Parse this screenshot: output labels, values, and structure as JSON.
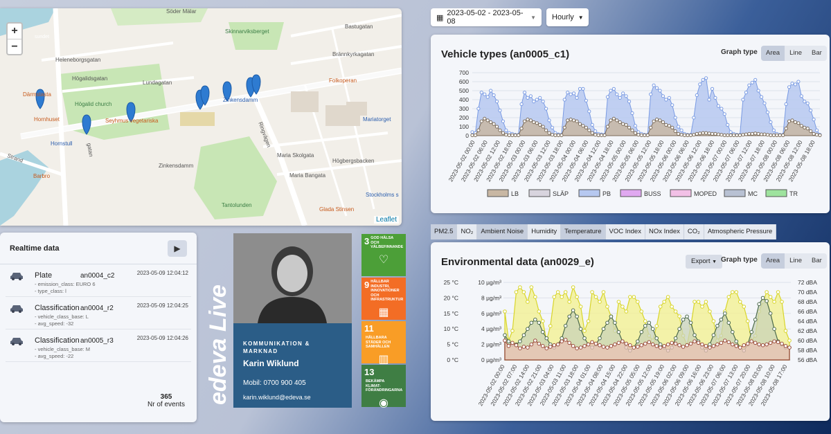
{
  "map": {
    "zoom_in": "+",
    "zoom_out": "−",
    "attribution": "Leaflet",
    "labels": {
      "soder_malar": "Söder Mälar",
      "skinnarviksberget": "Skinnarviksberget",
      "bastugatan": "Bastugatan",
      "brannkyrkagatan": "Brännkyrkagatan",
      "heleneborgsgatan": "Heleneborgsgatan",
      "hogalidsgatan": "Högalidsgatan",
      "lundagatan": "Lundagatan",
      "folkoperan": "Folkoperan",
      "darmstadt": "Därmstasta",
      "hogalid_church": "Högalid church",
      "zinkensdamm": "Zinkensdamm",
      "hornhuset": "Hornhuset",
      "seyhmus": "Seyhmus vegetariska",
      "mariatorget": "Mariatorget",
      "hornstull": "Hornstull",
      "ringvagen": "Ringvägen",
      "maria_skolgata": "Maria Skolgata",
      "strand": "Strand",
      "gatan": "gatan",
      "zinkensdamm2": "Zinkensdamm",
      "hogbergsbacken": "Högbergsbacken",
      "maria_bangata": "Maria Bangata",
      "barbro": "Barbro",
      "stockholms": "Stockholms s",
      "tantolunden": "Tantolunden",
      "glada": "Glada Stinsen",
      "sundet": "sundet"
    }
  },
  "realtime": {
    "title": "Realtime data",
    "events": [
      {
        "type": "Plate",
        "device": "an0004_c2",
        "time": "2023-05-09 12:04:12",
        "attrs": [
          "- emission_class: EURO 6",
          "- type_class: l"
        ]
      },
      {
        "type": "Classification",
        "device": "an0004_r2",
        "time": "2023-05-09 12:04:25",
        "attrs": [
          "- vehicle_class_base: L",
          "- avg_speed: -32"
        ]
      },
      {
        "type": "Classification",
        "device": "an0005_r3",
        "time": "2023-05-09 12:04:26",
        "attrs": [
          "- vehicle_class_base: M",
          "- avg_speed: -22"
        ]
      }
    ],
    "count": "365",
    "count_label": "Nr of events"
  },
  "brand": {
    "logo_text": "edeva Live"
  },
  "profile": {
    "department": "KOMMUNIKATION & MARKNAD",
    "name": "Karin Wiklund",
    "mobile": "Mobil: 0700 900 405",
    "email": "karin.wiklund@edeva.se"
  },
  "sdgs": [
    {
      "num": "3",
      "text": "GOD HÄLSA OCH VÄLBEFINNANDE",
      "color": "#4c9f38"
    },
    {
      "num": "9",
      "text": "HÅLLBAR INDUSTRI, INNOVATIONER OCH INFRASTRUKTUR",
      "color": "#f36d25"
    },
    {
      "num": "11",
      "text": "HÅLLBARA STÄDER OCH SAMHÄLLEN",
      "color": "#f99d26"
    },
    {
      "num": "13",
      "text": "BEKÄMPA KLIMAT-FÖRÄNDRINGARNA",
      "color": "#3f7e44"
    }
  ],
  "controls": {
    "date_range": "2023-05-02 - 2023-05-08",
    "interval": "Hourly"
  },
  "env_tabs": [
    {
      "label": "PM2.5",
      "active": true
    },
    {
      "label": "NO₂",
      "active": false
    },
    {
      "label": "Ambient Noise",
      "active": true
    },
    {
      "label": "Humidity",
      "active": false
    },
    {
      "label": "Temperature",
      "active": true
    },
    {
      "label": "VOC Index",
      "active": false
    },
    {
      "label": "NOx Index",
      "active": false
    },
    {
      "label": "CO₂",
      "active": false
    },
    {
      "label": "Atmospheric Pressure",
      "active": false
    }
  ],
  "graph_type": {
    "label": "Graph type",
    "options": [
      "Area",
      "Line",
      "Bar"
    ],
    "selected": "Area"
  },
  "export_label": "Export",
  "chart_data": [
    {
      "type": "area",
      "title": "Vehicle types (an0005_c1)",
      "ylim": [
        0,
        700
      ],
      "yticks": [
        0,
        100,
        200,
        300,
        400,
        500,
        600,
        700
      ],
      "xtick_labels": [
        "2023-05-02 00:00",
        "2023-05-02 06:00",
        "2023-05-02 12:00",
        "2023-05-02 18:00",
        "2023-05-03 00:00",
        "2023-05-03 06:00",
        "2023-05-03 12:00",
        "2023-05-03 18:00",
        "2023-05-04 00:00",
        "2023-05-04 06:00",
        "2023-05-04 12:00",
        "2023-05-04 18:00",
        "2023-05-05 00:00",
        "2023-05-05 06:00",
        "2023-05-05 12:00",
        "2023-05-05 18:00",
        "2023-05-06 00:00",
        "2023-05-06 06:00",
        "2023-05-06 12:00",
        "2023-05-06 18:00",
        "2023-05-07 00:00",
        "2023-05-07 06:00",
        "2023-05-07 12:00",
        "2023-05-07 18:00",
        "2023-05-08 00:00",
        "2023-05-08 06:00",
        "2023-05-08 12:00",
        "2023-05-08 18:00"
      ],
      "legend": [
        {
          "name": "LB",
          "color": "#c8b7a3"
        },
        {
          "name": "SLÄP",
          "color": "#d8d4de"
        },
        {
          "name": "PB",
          "color": "#b6c8f0"
        },
        {
          "name": "BUSS",
          "color": "#e0a8f0"
        },
        {
          "name": "MOPED",
          "color": "#f2c0e6"
        },
        {
          "name": "MC",
          "color": "#b8c1d3"
        },
        {
          "name": "TR",
          "color": "#9ee39e"
        }
      ],
      "series": [
        {
          "name": "PB",
          "color": "#7a9be3",
          "fill": "#b6c8f0",
          "values": [
            40,
            30,
            300,
            480,
            460,
            430,
            500,
            450,
            380,
            280,
            160,
            60,
            30,
            20,
            10,
            10,
            350,
            480,
            420,
            440,
            380,
            400,
            420,
            380,
            300,
            170,
            90,
            30,
            15,
            10,
            400,
            480,
            460,
            470,
            420,
            520,
            520,
            390,
            270,
            120,
            50,
            20,
            15,
            10,
            430,
            500,
            520,
            460,
            420,
            470,
            440,
            380,
            250,
            110,
            40,
            20,
            10,
            10,
            460,
            560,
            530,
            500,
            440,
            400,
            420,
            340,
            200,
            100,
            60,
            20,
            10,
            10,
            200,
            450,
            570,
            620,
            640,
            400,
            520,
            420,
            330,
            300,
            240,
            120,
            40,
            20,
            10,
            10,
            400,
            480,
            560,
            590,
            620,
            500,
            430,
            360,
            260,
            150,
            60,
            20,
            10,
            10,
            350,
            540,
            580,
            570,
            600,
            440,
            380,
            360,
            280,
            180,
            60,
            10
          ]
        },
        {
          "name": "LB",
          "color": "#7b6b58",
          "fill": "#c8b7a3",
          "values": [
            5,
            5,
            60,
            160,
            190,
            170,
            150,
            130,
            100,
            60,
            30,
            10,
            5,
            5,
            5,
            5,
            80,
            160,
            180,
            170,
            150,
            140,
            120,
            100,
            60,
            30,
            10,
            5,
            5,
            5,
            90,
            170,
            180,
            170,
            160,
            130,
            110,
            90,
            60,
            30,
            10,
            5,
            5,
            5,
            100,
            170,
            190,
            170,
            150,
            130,
            120,
            90,
            60,
            30,
            10,
            5,
            5,
            5,
            90,
            160,
            180,
            170,
            150,
            120,
            110,
            90,
            50,
            20,
            10,
            5,
            5,
            5,
            10,
            20,
            25,
            30,
            30,
            25,
            20,
            20,
            15,
            10,
            5,
            5,
            5,
            5,
            5,
            5,
            10,
            15,
            20,
            20,
            25,
            20,
            15,
            15,
            10,
            5,
            5,
            5,
            5,
            5,
            80,
            160,
            170,
            150,
            140,
            110,
            90,
            80,
            50,
            20,
            10,
            5
          ]
        }
      ]
    },
    {
      "type": "area",
      "title": "Environmental data (an0029_e)",
      "y_left_temp": [
        "25 °C",
        "20 °C",
        "15 °C",
        "10 °C",
        "5 °C",
        "0 °C"
      ],
      "y_left_pm": [
        "10 µg/m³",
        "8 µg/m³",
        "6 µg/m³",
        "4 µg/m³",
        "2 µg/m³",
        "0 µg/m³"
      ],
      "y_right_noise": [
        "72 dBA",
        "70 dBA",
        "68 dBA",
        "66 dBA",
        "64 dBA",
        "62 dBA",
        "60 dBA",
        "58 dBA",
        "56 dBA"
      ],
      "xtick_labels": [
        "2023-05-02 00:00",
        "2023-05-02 07:00",
        "2023-05-02 14:00",
        "2023-05-02 21:00",
        "2023-05-03 04:00",
        "2023-05-03 11:00",
        "2023-05-03 18:00",
        "2023-05-04 01:00",
        "2023-05-04 08:00",
        "2023-05-04 15:00",
        "2023-05-04 22:00",
        "2023-05-05 05:00",
        "2023-05-05 12:00",
        "2023-05-05 19:00",
        "2023-05-06 02:00",
        "2023-05-06 09:00",
        "2023-05-06 16:00",
        "2023-05-06 23:00",
        "2023-05-07 06:00",
        "2023-05-07 13:00",
        "2023-05-07 20:00",
        "2023-05-08 03:00",
        "2023-05-08 10:00",
        "2023-05-08 17:00"
      ],
      "series": [
        {
          "name": "Ambient Noise",
          "color": "#d8d52a",
          "fill": "#f3f08c",
          "values": [
            66,
            60,
            62,
            70,
            71,
            70,
            68,
            71,
            69,
            66,
            64,
            60,
            63,
            69,
            70,
            69,
            70,
            68,
            71,
            69,
            67,
            62,
            64,
            70,
            69,
            68,
            70,
            67,
            65,
            62,
            68,
            67,
            66,
            69,
            69,
            68,
            66,
            64,
            61,
            60,
            63,
            67,
            68,
            69,
            67,
            66,
            65,
            61,
            59,
            63,
            68,
            68,
            67,
            68,
            66,
            64,
            60,
            61,
            66,
            69,
            70,
            70,
            68,
            67,
            64,
            60,
            61,
            66,
            68,
            70,
            69,
            68,
            70,
            68,
            62,
            60
          ]
        },
        {
          "name": "Temperature",
          "color": "#4c6a4c",
          "fill": "#c9d3b8",
          "values": [
            8,
            6,
            5,
            5,
            6,
            8,
            10,
            12,
            13,
            12,
            9,
            7,
            5,
            4,
            5,
            7,
            11,
            14,
            16,
            14,
            10,
            7,
            5,
            4,
            5,
            7,
            10,
            12,
            14,
            12,
            9,
            6,
            4,
            3,
            4,
            6,
            9,
            11,
            12,
            10,
            7,
            5,
            4,
            3,
            4,
            7,
            10,
            13,
            14,
            12,
            8,
            6,
            4,
            3,
            5,
            8,
            11,
            13,
            15,
            12,
            9,
            6,
            4,
            3,
            5,
            9,
            13,
            18,
            20,
            19,
            15,
            10,
            6,
            5,
            4,
            4
          ]
        },
        {
          "name": "PM2.5",
          "color": "#9b4a3a",
          "fill": "#e9c2b6",
          "values": [
            2.5,
            1.8,
            2.2,
            1.9,
            1.5,
            1.7,
            1.6,
            2.0,
            2.5,
            2.1,
            1.8,
            1.5,
            1.7,
            1.9,
            2.0,
            2.4,
            2.6,
            2.2,
            1.8,
            1.5,
            1.6,
            1.8,
            2.0,
            2.3,
            2.1,
            1.9,
            1.7,
            1.6,
            1.8,
            2.0,
            2.2,
            2.4,
            2.1,
            1.9,
            1.6,
            1.7,
            1.9,
            2.1,
            2.3,
            2.0,
            1.8,
            1.6,
            1.8,
            2.0,
            2.2,
            2.1,
            1.9,
            1.7,
            1.9,
            2.1,
            2.4,
            2.2,
            2.0,
            1.8,
            1.6,
            1.8,
            2.0,
            2.2,
            2.5,
            2.3,
            2.0,
            1.8,
            1.6,
            1.9,
            2.1,
            2.4,
            2.2,
            2.0,
            1.9,
            2.0,
            2.2,
            2.4,
            2.3,
            2.1,
            1.8,
            1.6
          ]
        }
      ]
    }
  ]
}
